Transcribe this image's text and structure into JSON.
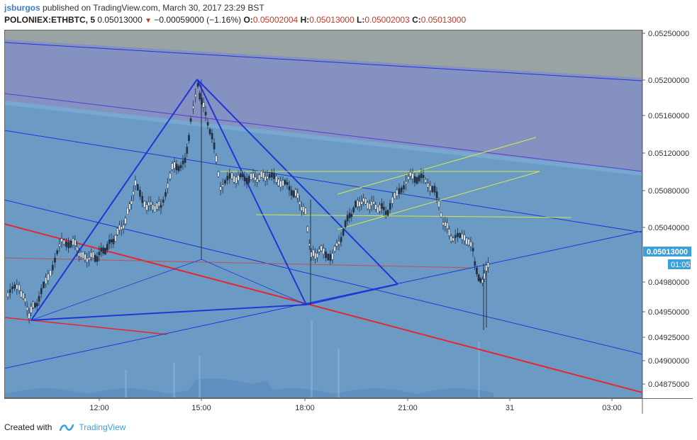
{
  "header": {
    "user": "jsburgos",
    "published_text": "published on TradingView.com, March 30, 2017 23:29 BST",
    "symbol": "POLONIEX:ETHBTC, 5",
    "last": "0.05013000",
    "change": "−0.00059000 (−1.16%)",
    "open_label": "O:",
    "open": "0.05002004",
    "high_label": "H:",
    "high": "0.05013000",
    "low_label": "L:",
    "low": "0.05002003",
    "close_label": "C:",
    "close": "0.05013000"
  },
  "footer": {
    "created_with": "Created with",
    "brand": "TradingView"
  },
  "colors": {
    "bg": "#6b9bc4",
    "down": "#c0392b",
    "accent": "#3ba0d8",
    "pattern": "#1f36d6",
    "channel": "#e8252e",
    "fib": "#d6e84a"
  },
  "chart_data": {
    "type": "candlestick",
    "title": "",
    "xlabel": "",
    "ylabel": "",
    "x_ticks": [
      "12:00",
      "15:00",
      "18:00",
      "21:00",
      "31",
      "03:00"
    ],
    "y_ticks": [
      "0.05250000",
      "0.05200000",
      "0.05160000",
      "0.05120000",
      "0.05080000",
      "0.05040000",
      "0.04980000",
      "0.04950000",
      "0.04925000",
      "0.04900000",
      "0.04875000"
    ],
    "last_price_label": "0.05013000",
    "countdown_label": "01:05",
    "grid": false,
    "annotations": [
      "XABCD harmonic pattern",
      "descending channel",
      "trend lines",
      "horizontal levels",
      "volume"
    ]
  }
}
